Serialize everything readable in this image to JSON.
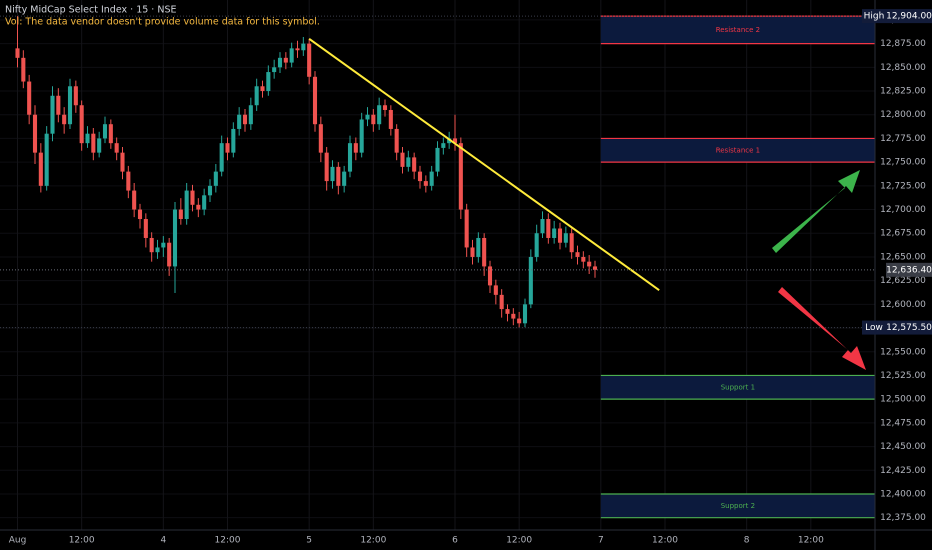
{
  "chart_data": {
    "type": "candlestick",
    "title": "Nifty MidCap Select Index · 15 · NSE",
    "subtitle": "Vol: The data vendor doesn't provide volume data for this symbol.",
    "up_color": "#26a69a",
    "down_color": "#ef5350",
    "x": [
      0,
      1,
      2,
      3,
      4,
      5,
      6,
      7,
      8,
      9,
      10,
      11,
      12,
      13,
      14,
      15,
      16,
      17,
      18,
      19,
      20,
      21,
      22,
      23,
      24,
      25,
      26,
      27,
      28,
      29,
      30,
      31,
      32,
      33,
      34,
      35,
      36,
      37,
      38,
      39,
      40,
      41,
      42,
      43,
      44,
      45,
      46,
      47,
      48,
      49,
      50,
      51,
      52,
      53,
      54,
      55,
      56,
      57,
      58,
      59,
      60,
      61,
      62,
      63,
      64,
      65,
      66,
      67,
      68,
      69,
      70,
      71,
      72,
      73,
      74,
      75,
      76,
      77,
      78,
      79,
      80,
      81,
      82,
      83,
      84,
      85,
      86,
      87,
      88,
      89,
      90,
      91,
      92,
      93,
      94,
      95,
      96,
      97,
      98,
      99
    ],
    "open": [
      12870,
      12860,
      12835,
      12800,
      12760,
      12725,
      12780,
      12820,
      12800,
      12790,
      12830,
      12810,
      12770,
      12780,
      12760,
      12775,
      12790,
      12770,
      12760,
      12740,
      12720,
      12700,
      12690,
      12670,
      12655,
      12660,
      12665,
      12640,
      12700,
      12690,
      12720,
      12705,
      12700,
      12715,
      12725,
      12740,
      12770,
      12760,
      12785,
      12800,
      12790,
      12810,
      12830,
      12825,
      12845,
      12850,
      12860,
      12855,
      12870,
      12868,
      12875,
      12840,
      12790,
      12760,
      12730,
      12745,
      12725,
      12740,
      12770,
      12760,
      12795,
      12800,
      12790,
      12810,
      12805,
      12785,
      12760,
      12745,
      12755,
      12740,
      12730,
      12725,
      12740,
      12765,
      12770,
      12775,
      12770,
      12700,
      12660,
      12650,
      12670,
      12640,
      12620,
      12610,
      12595,
      12590,
      12585,
      12580,
      12600,
      12650,
      12675,
      12690,
      12670,
      12680,
      12665,
      12675,
      12655,
      12650,
      12645,
      12640
    ],
    "high": [
      12904,
      12868,
      12842,
      12810,
      12770,
      12788,
      12830,
      12828,
      12808,
      12838,
      12836,
      12815,
      12788,
      12786,
      12782,
      12798,
      12795,
      12776,
      12766,
      12746,
      12728,
      12706,
      12696,
      12676,
      12668,
      12672,
      12670,
      12708,
      12712,
      12728,
      12726,
      12712,
      12722,
      12732,
      12748,
      12778,
      12776,
      12792,
      12808,
      12806,
      12818,
      12838,
      12836,
      12852,
      12858,
      12866,
      12866,
      12876,
      12878,
      12882,
      12880,
      12846,
      12798,
      12766,
      12752,
      12750,
      12746,
      12778,
      12776,
      12802,
      12808,
      12806,
      12818,
      12816,
      12810,
      12790,
      12766,
      12762,
      12760,
      12746,
      12736,
      12746,
      12772,
      12776,
      12782,
      12800,
      12776,
      12706,
      12668,
      12676,
      12675,
      12646,
      12626,
      12616,
      12600,
      12596,
      12592,
      12606,
      12658,
      12684,
      12698,
      12696,
      12688,
      12686,
      12682,
      12680,
      12662,
      12656,
      12652,
      12646
    ],
    "low": [
      12850,
      12828,
      12790,
      12748,
      12718,
      12720,
      12772,
      12792,
      12780,
      12785,
      12802,
      12762,
      12765,
      12752,
      12755,
      12770,
      12764,
      12752,
      12732,
      12712,
      12692,
      12680,
      12660,
      12645,
      12648,
      12650,
      12630,
      12612,
      12684,
      12684,
      12698,
      12692,
      12694,
      12708,
      12718,
      12735,
      12752,
      12755,
      12778,
      12782,
      12784,
      12804,
      12818,
      12820,
      12838,
      12844,
      12848,
      12850,
      12860,
      12862,
      12832,
      12782,
      12750,
      12720,
      12722,
      12716,
      12718,
      12734,
      12752,
      12755,
      12788,
      12782,
      12784,
      12798,
      12778,
      12752,
      12738,
      12740,
      12732,
      12722,
      12718,
      12720,
      12735,
      12758,
      12764,
      12762,
      12690,
      12650,
      12642,
      12644,
      12630,
      12612,
      12600,
      12586,
      12582,
      12578,
      12575.5,
      12576,
      12596,
      12645,
      12670,
      12664,
      12664,
      12658,
      12660,
      12648,
      12642,
      12638,
      12632,
      12628
    ],
    "close": [
      12860,
      12835,
      12800,
      12760,
      12725,
      12780,
      12820,
      12800,
      12790,
      12830,
      12810,
      12770,
      12780,
      12760,
      12775,
      12790,
      12770,
      12760,
      12740,
      12720,
      12700,
      12690,
      12670,
      12655,
      12660,
      12665,
      12640,
      12700,
      12690,
      12720,
      12705,
      12700,
      12715,
      12725,
      12740,
      12770,
      12760,
      12785,
      12800,
      12790,
      12810,
      12830,
      12825,
      12845,
      12850,
      12860,
      12855,
      12870,
      12868,
      12875,
      12840,
      12790,
      12760,
      12730,
      12745,
      12725,
      12740,
      12770,
      12760,
      12795,
      12800,
      12790,
      12810,
      12805,
      12785,
      12760,
      12745,
      12755,
      12740,
      12730,
      12725,
      12740,
      12765,
      12770,
      12775,
      12770,
      12700,
      12660,
      12650,
      12670,
      12640,
      12620,
      12610,
      12595,
      12590,
      12585,
      12580,
      12600,
      12650,
      12675,
      12690,
      12670,
      12680,
      12665,
      12675,
      12655,
      12650,
      12645,
      12640,
      12636.4
    ],
    "xlim": [
      -3,
      147
    ],
    "xticks": [
      {
        "value": 0,
        "label": "Aug"
      },
      {
        "value": 11,
        "label": "12:00"
      },
      {
        "value": 25,
        "label": "4"
      },
      {
        "value": 36,
        "label": "12:00"
      },
      {
        "value": 50,
        "label": "5"
      },
      {
        "value": 61,
        "label": "12:00"
      },
      {
        "value": 75,
        "label": "6"
      },
      {
        "value": 86,
        "label": "12:00"
      },
      {
        "value": 100,
        "label": "7"
      },
      {
        "value": 111,
        "label": "12:00"
      },
      {
        "value": 125,
        "label": "8"
      },
      {
        "value": 136,
        "label": "12:00"
      }
    ],
    "ylim": [
      12362,
      12921
    ],
    "yticks": [
      {
        "value": 12375,
        "label": "12,375.00"
      },
      {
        "value": 12400,
        "label": "12,400.00"
      },
      {
        "value": 12425,
        "label": "12,425.00"
      },
      {
        "value": 12450,
        "label": "12,450.00"
      },
      {
        "value": 12475,
        "label": "12,475.00"
      },
      {
        "value": 12500,
        "label": "12,500.00"
      },
      {
        "value": 12525,
        "label": "12,525.00"
      },
      {
        "value": 12550,
        "label": "12,550.00"
      },
      {
        "value": 12575,
        "label": "12,575.00"
      },
      {
        "value": 12600,
        "label": "12,600.00"
      },
      {
        "value": 12625,
        "label": "12,625.00"
      },
      {
        "value": 12650,
        "label": "12,650.00"
      },
      {
        "value": 12675,
        "label": "12,675.00"
      },
      {
        "value": 12700,
        "label": "12,700.00"
      },
      {
        "value": 12725,
        "label": "12,725.00"
      },
      {
        "value": 12750,
        "label": "12,750.00"
      },
      {
        "value": 12775,
        "label": "12,775.00"
      },
      {
        "value": 12800,
        "label": "12,800.00"
      },
      {
        "value": 12825,
        "label": "12,825.00"
      },
      {
        "value": 12850,
        "label": "12,850.00"
      },
      {
        "value": 12875,
        "label": "12,875.00"
      },
      {
        "value": 12900,
        "label": "12,900.00"
      }
    ],
    "price_labels": [
      {
        "name": "High",
        "value": 12904,
        "label": "12,904.00"
      },
      {
        "value": 12636.4,
        "label": "12,636.40"
      },
      {
        "name": "Low",
        "value": 12575.5,
        "label": "12,575.50"
      }
    ],
    "zones": [
      {
        "label": "Resistance 2",
        "from": 12875,
        "to": 12904,
        "x_start": 100,
        "color": "#f23645"
      },
      {
        "label": "Resistance 1",
        "from": 12750,
        "to": 12775,
        "x_start": 100,
        "color": "#f23645"
      },
      {
        "label": "Support 1",
        "from": 12500,
        "to": 12525,
        "x_start": 100,
        "color": "#4caf50"
      },
      {
        "label": "Support 2",
        "from": 12375,
        "to": 12400,
        "x_start": 100,
        "color": "#4caf50"
      }
    ],
    "trendline": {
      "x": [
        50,
        110
      ],
      "y": [
        12880,
        12615
      ],
      "color": "#ffeb3b"
    }
  }
}
